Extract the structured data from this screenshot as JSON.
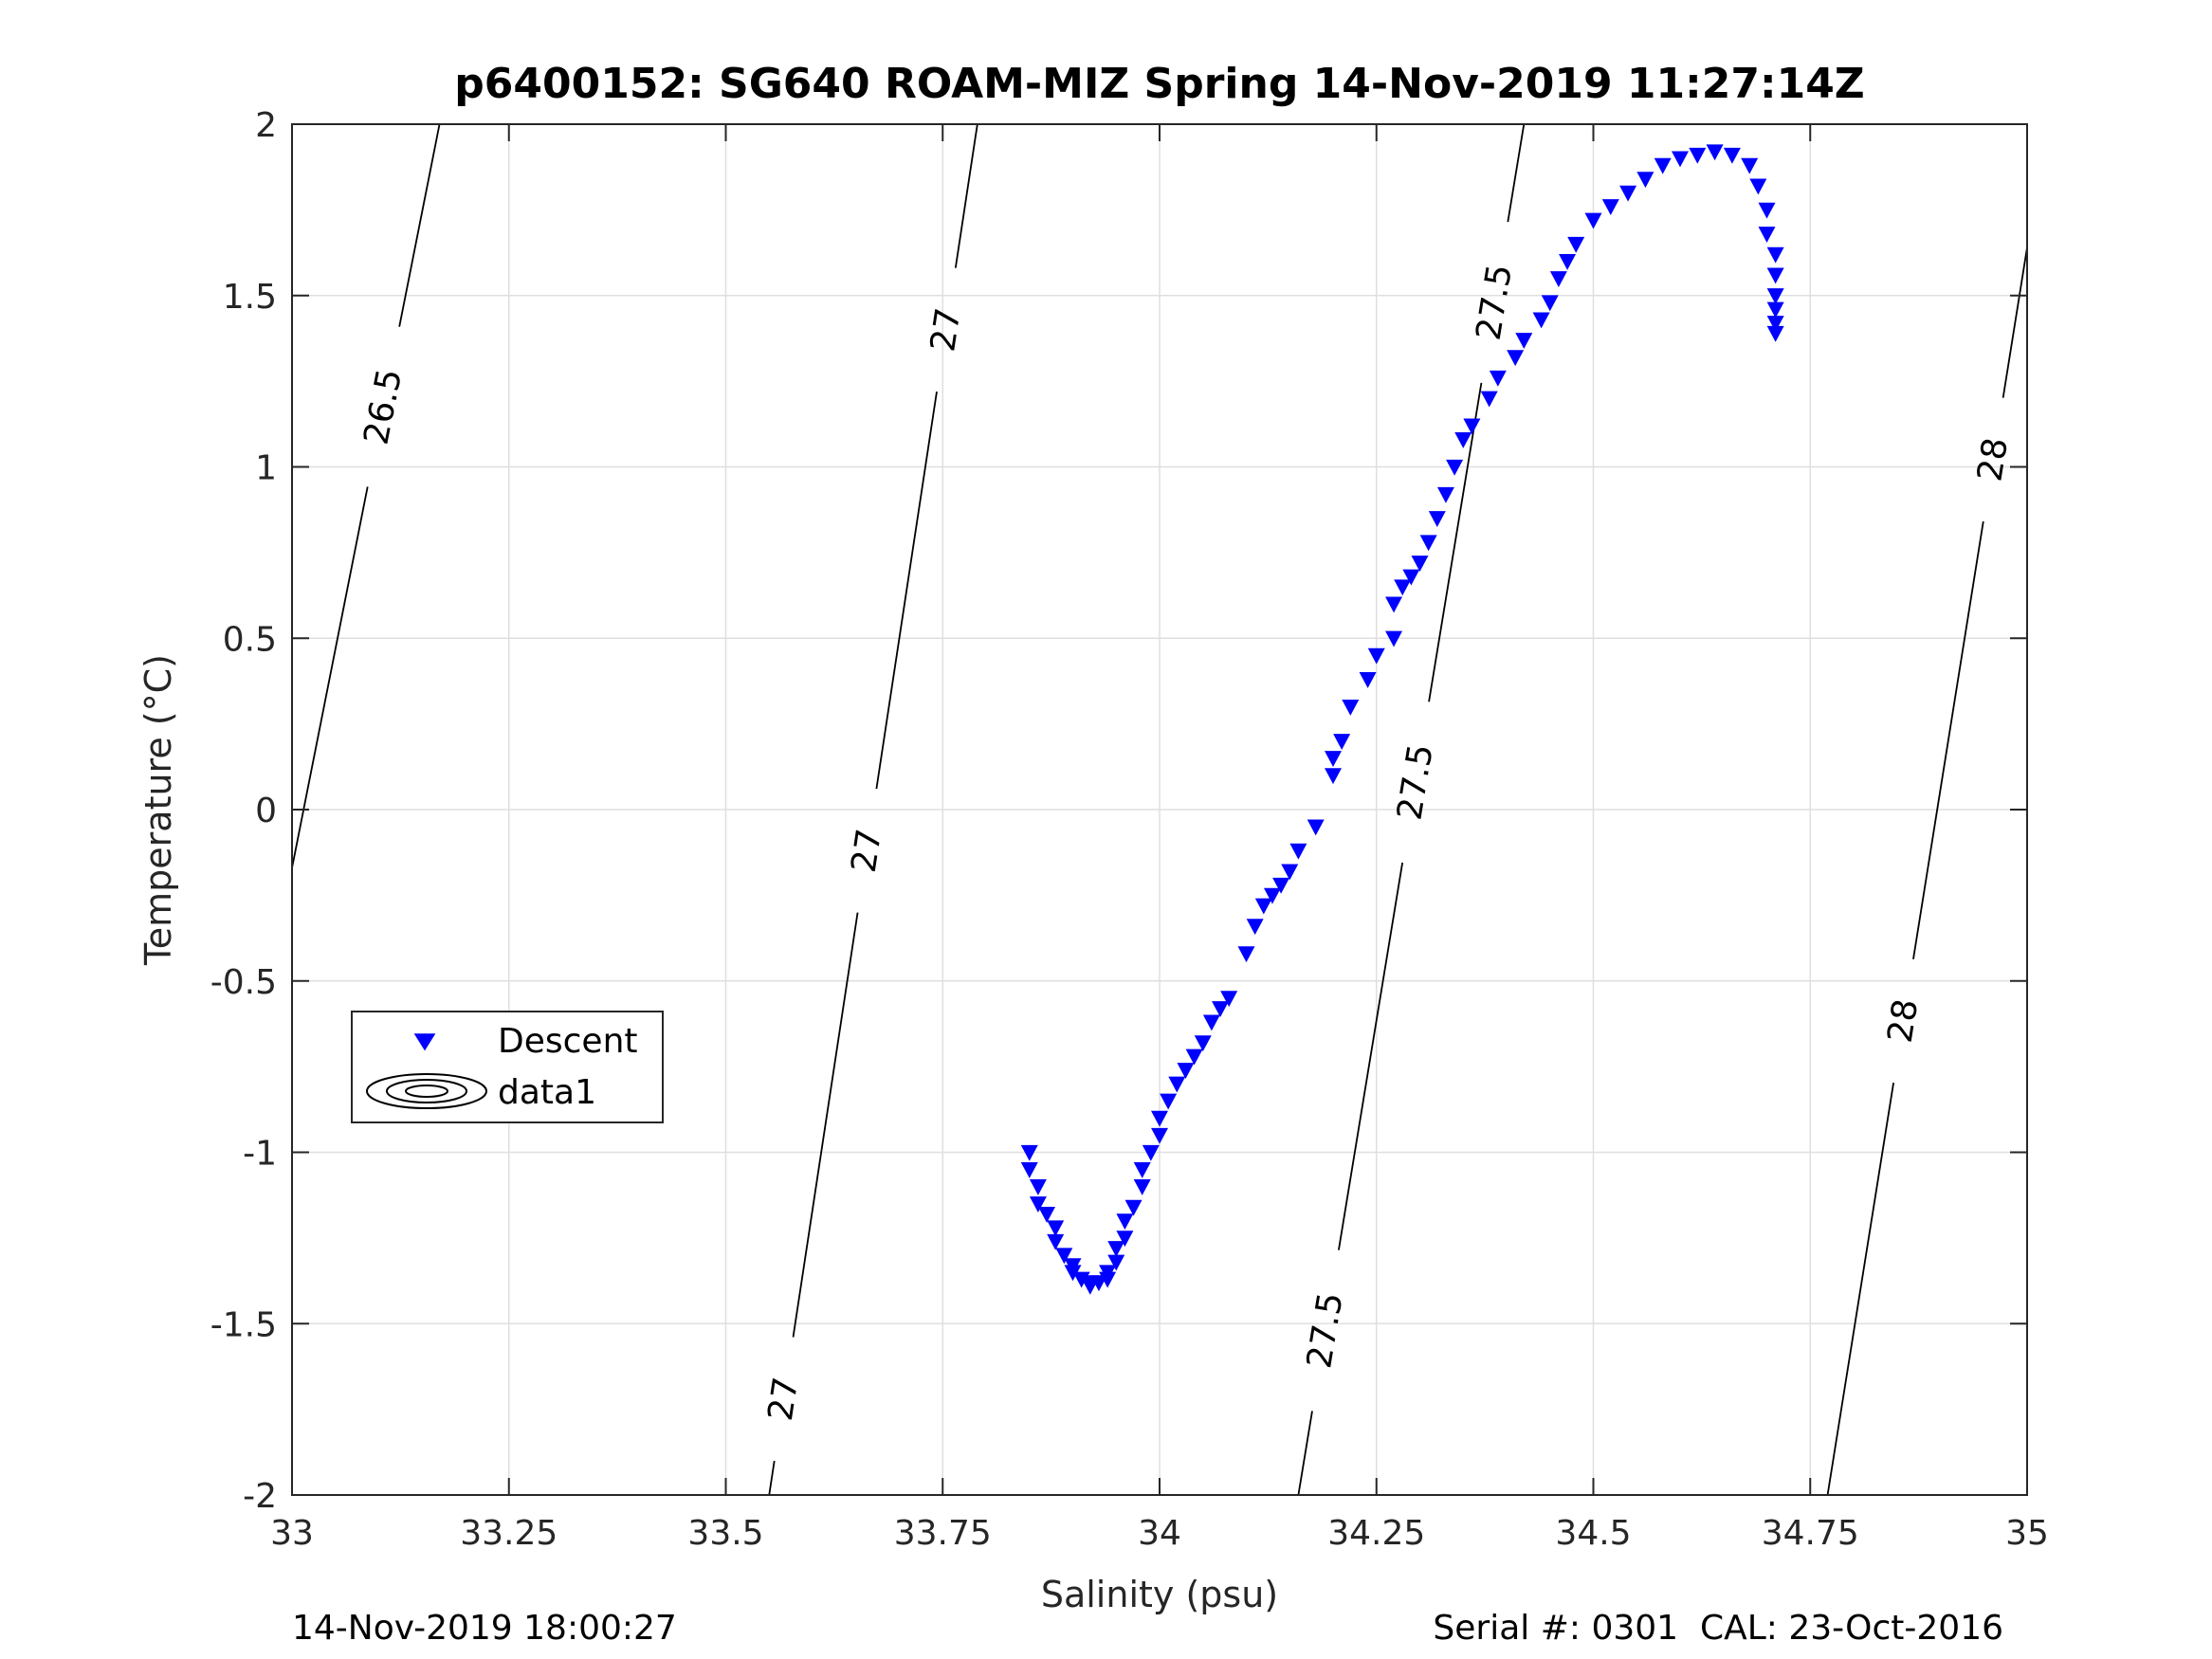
{
  "chart_data": {
    "type": "scatter",
    "title": "p6400152: SG640 ROAM-MIZ Spring 14-Nov-2019 11:27:14Z",
    "xlabel": "Salinity (psu)",
    "ylabel": "Temperature (°C)",
    "xlim": [
      33,
      35
    ],
    "ylim": [
      -2,
      2
    ],
    "xticks": [
      33,
      33.25,
      33.5,
      33.75,
      34,
      34.25,
      34.5,
      34.75,
      35
    ],
    "xticklabels": [
      "33",
      "33.25",
      "33.5",
      "33.75",
      "34",
      "34.25",
      "34.5",
      "34.75",
      "35"
    ],
    "yticks": [
      -2,
      -1.5,
      -1,
      -0.5,
      0,
      0.5,
      1,
      1.5,
      2
    ],
    "yticklabels": [
      "-2",
      "-1.5",
      "-1",
      "-0.5",
      "0",
      "0.5",
      "1",
      "1.5",
      "2"
    ],
    "grid": true,
    "legend": {
      "location": "lower-left",
      "entries": [
        {
          "label": "Descent",
          "marker": "triangle-down",
          "color": "#0000ff"
        },
        {
          "label": "data1",
          "marker": "contour",
          "color": "#000000"
        }
      ]
    },
    "series": [
      {
        "name": "Descent",
        "marker": "triangle-down",
        "color": "#0000ff",
        "x": [
          33.85,
          33.85,
          33.86,
          33.86,
          33.87,
          33.88,
          33.88,
          33.89,
          33.9,
          33.9,
          33.91,
          33.92,
          33.92,
          33.93,
          33.94,
          33.94,
          33.95,
          33.95,
          33.96,
          33.96,
          33.97,
          33.98,
          33.98,
          33.99,
          34.0,
          34.0,
          34.01,
          34.02,
          34.03,
          34.04,
          34.05,
          34.06,
          34.07,
          34.08,
          34.1,
          34.11,
          34.12,
          34.13,
          34.14,
          34.15,
          34.16,
          34.18,
          34.2,
          34.2,
          34.21,
          34.22,
          34.24,
          34.25,
          34.27,
          34.27,
          34.28,
          34.29,
          34.3,
          34.31,
          34.32,
          34.33,
          34.34,
          34.35,
          34.36,
          34.38,
          34.39,
          34.41,
          34.42,
          34.44,
          34.45,
          34.46,
          34.47,
          34.48,
          34.5,
          34.52,
          34.54,
          34.56,
          34.58,
          34.6,
          34.62,
          34.64,
          34.66,
          34.68,
          34.69,
          34.7,
          34.7,
          34.71,
          34.71,
          34.71,
          34.71,
          34.71,
          34.71
        ],
        "y": [
          -1.0,
          -1.05,
          -1.1,
          -1.15,
          -1.18,
          -1.22,
          -1.26,
          -1.3,
          -1.33,
          -1.35,
          -1.37,
          -1.38,
          -1.39,
          -1.38,
          -1.37,
          -1.35,
          -1.32,
          -1.28,
          -1.25,
          -1.2,
          -1.16,
          -1.1,
          -1.05,
          -1.0,
          -0.95,
          -0.9,
          -0.85,
          -0.8,
          -0.76,
          -0.72,
          -0.68,
          -0.62,
          -0.58,
          -0.55,
          -0.42,
          -0.34,
          -0.28,
          -0.25,
          -0.22,
          -0.18,
          -0.12,
          -0.05,
          0.1,
          0.15,
          0.2,
          0.3,
          0.38,
          0.45,
          0.5,
          0.6,
          0.65,
          0.68,
          0.72,
          0.78,
          0.85,
          0.92,
          1.0,
          1.08,
          1.12,
          1.2,
          1.26,
          1.32,
          1.37,
          1.43,
          1.48,
          1.55,
          1.6,
          1.65,
          1.72,
          1.76,
          1.8,
          1.84,
          1.88,
          1.9,
          1.91,
          1.92,
          1.91,
          1.88,
          1.82,
          1.75,
          1.68,
          1.62,
          1.56,
          1.5,
          1.46,
          1.42,
          1.39
        ]
      }
    ],
    "contours": [
      {
        "label": "26.5",
        "points": [
          [
            33.0,
            -0.17
          ],
          [
            33.17,
            2.0
          ]
        ]
      },
      {
        "label": "27",
        "points": [
          [
            33.55,
            -2.0
          ],
          [
            33.79,
            2.0
          ]
        ]
      },
      {
        "label": "27.5",
        "points": [
          [
            34.16,
            -2.0
          ],
          [
            34.42,
            2.0
          ]
        ]
      },
      {
        "label": "28",
        "points": [
          [
            34.77,
            -2.0
          ],
          [
            35.0,
            1.64
          ]
        ]
      }
    ]
  },
  "footer": {
    "left": "14-Nov-2019 18:00:27",
    "right": "Serial #: 0301  CAL: 23-Oct-2016"
  },
  "colors": {
    "marker": "#0000ff",
    "axis": "#262626",
    "grid": "#dfdfdf",
    "contour": "#000000"
  }
}
